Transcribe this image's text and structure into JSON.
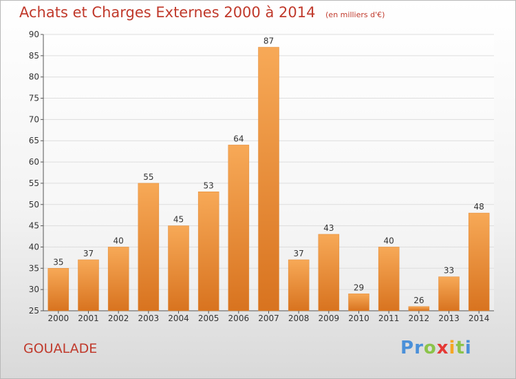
{
  "chart_data": {
    "type": "bar",
    "title": "Achats et Charges Externes 2000 à 2014",
    "subtitle": "(en milliers d'€)",
    "xlabel": "",
    "ylabel": "",
    "categories": [
      "2000",
      "2001",
      "2002",
      "2003",
      "2004",
      "2005",
      "2006",
      "2007",
      "2008",
      "2009",
      "2010",
      "2011",
      "2012",
      "2013",
      "2014"
    ],
    "values": [
      35,
      37,
      40,
      55,
      45,
      53,
      64,
      87,
      37,
      43,
      29,
      40,
      26,
      33,
      48
    ],
    "ylim": [
      25,
      90
    ],
    "yticks": [
      25,
      30,
      35,
      40,
      45,
      50,
      55,
      60,
      65,
      70,
      75,
      80,
      85,
      90
    ],
    "grid": true,
    "bar_color_top": "#f7a957",
    "bar_color_bottom": "#d8731f",
    "grid_color": "#dddddd"
  },
  "footer": {
    "town": "GOUALADE",
    "logo_letters": [
      "P",
      "r",
      "o",
      "x",
      "i",
      "t",
      "i"
    ],
    "logo_colors": [
      "#4a90d9",
      "#4a90d9",
      "#8bc34a",
      "#e53935",
      "#f5a623",
      "#8bc34a",
      "#4a90d9"
    ]
  }
}
